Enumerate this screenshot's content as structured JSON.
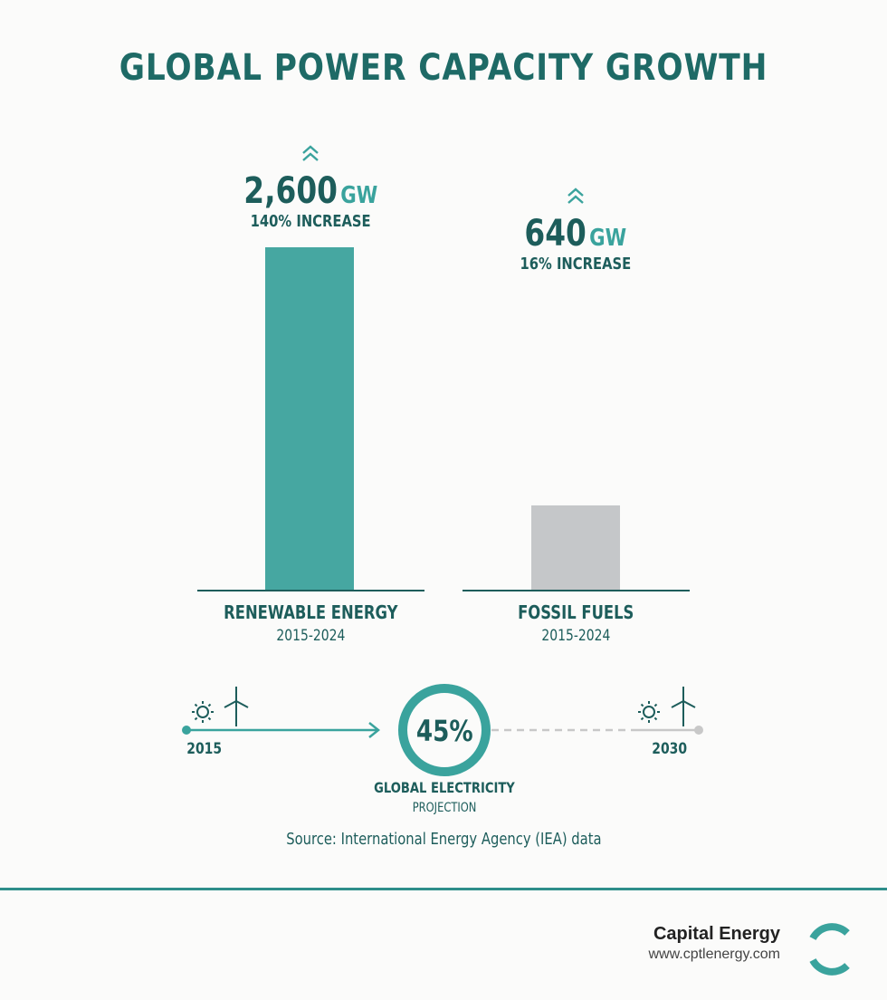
{
  "title": "GLOBAL POWER CAPACITY GROWTH",
  "colors": {
    "renewable": "#46a7a1",
    "fossil": "#c5c7c9",
    "dark_teal": "#1d5d5b",
    "accent_teal": "#3aa39d"
  },
  "chart_data": {
    "type": "bar",
    "title": "GLOBAL POWER CAPACITY GROWTH",
    "categories": [
      "RENEWABLE ENERGY",
      "FOSSIL FUELS"
    ],
    "periods": [
      "2015-2024",
      "2015-2024"
    ],
    "values": [
      2600,
      640
    ],
    "value_labels": [
      "2,600",
      "640"
    ],
    "unit": "GW",
    "increase_labels": [
      "140% INCREASE",
      "16% INCREASE"
    ],
    "up_icon": "chevron-up-icon"
  },
  "timeline": {
    "start_year": "2015",
    "end_year": "2030",
    "projection_percent": 45,
    "projection_value": "45%",
    "projection_label": "GLOBAL ELECTRICITY",
    "projection_sub": "PROJECTION",
    "icons": [
      "sun-icon",
      "wind-turbine-icon"
    ]
  },
  "source": "Source: International Energy Agency (IEA) data",
  "footer": {
    "company": "Capital Energy",
    "url": "www.cptlenergy.com",
    "logo_icon": "c-logo-icon"
  }
}
